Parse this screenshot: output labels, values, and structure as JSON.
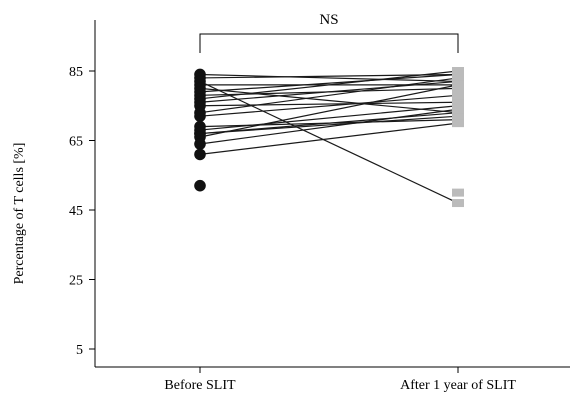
{
  "chart_data": {
    "type": "line",
    "ylabel": "Percentage of T cells [%]",
    "categories": [
      "Before SLIT",
      "After 1 year of SLIT"
    ],
    "yticks": [
      5,
      25,
      45,
      65,
      85
    ],
    "ylim": [
      0,
      100
    ],
    "grid": false,
    "annotation": "NS",
    "marker_before": "filled-circle",
    "marker_after": "square",
    "colors": {
      "line": "#1a1a1a",
      "before_marker": "#111111",
      "after_marker": "#bbbbbb"
    },
    "pairs": [
      [
        84,
        82
      ],
      [
        83,
        84
      ],
      [
        82,
        47
      ],
      [
        81,
        81
      ],
      [
        80,
        73
      ],
      [
        79,
        84
      ],
      [
        78,
        80
      ],
      [
        77,
        85
      ],
      [
        76,
        82
      ],
      [
        75,
        76
      ],
      [
        73,
        83
      ],
      [
        72,
        78
      ],
      [
        69,
        71
      ],
      [
        68,
        75
      ],
      [
        67,
        73
      ],
      [
        67,
        72
      ],
      [
        66,
        81
      ],
      [
        64,
        74
      ],
      [
        61,
        70
      ],
      [
        52,
        null
      ],
      [
        null,
        50
      ]
    ]
  }
}
